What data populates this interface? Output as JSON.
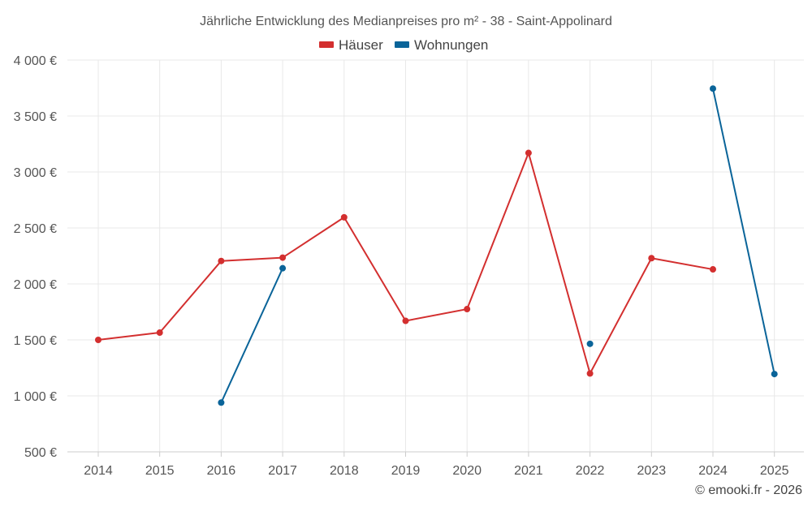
{
  "chart_data": {
    "type": "line",
    "title": "Jährliche Entwicklung des Medianpreises pro m² - 38 - Saint-Appolinard",
    "x": [
      "2014",
      "2015",
      "2016",
      "2017",
      "2018",
      "2019",
      "2020",
      "2021",
      "2022",
      "2023",
      "2024",
      "2025"
    ],
    "series": [
      {
        "name": "Häuser",
        "color": "#d32f2f",
        "values": [
          1500,
          1565,
          2205,
          2235,
          2595,
          1670,
          1775,
          3170,
          1200,
          2230,
          2130,
          null
        ]
      },
      {
        "name": "Wohnungen",
        "color": "#0a6499",
        "values": [
          null,
          null,
          940,
          2140,
          null,
          null,
          null,
          null,
          1465,
          null,
          3745,
          1195
        ]
      }
    ],
    "ylim": [
      500,
      4000
    ],
    "yticks": [
      500,
      1000,
      1500,
      2000,
      2500,
      3000,
      3500,
      4000
    ],
    "ytick_labels": [
      "500 €",
      "1 000 €",
      "1 500 €",
      "2 000 €",
      "2 500 €",
      "3 000 €",
      "3 500 €",
      "4 000 €"
    ],
    "xlabel": "",
    "ylabel": "",
    "grid": true,
    "legend_position": "top-center"
  },
  "credit": "© emooki.fr - 2026"
}
